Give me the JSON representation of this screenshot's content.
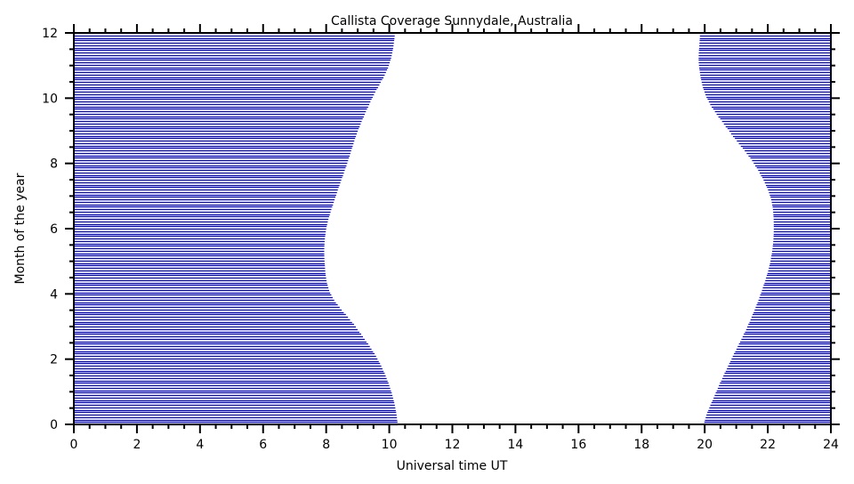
{
  "chart_data": {
    "type": "area",
    "title": "Callista Coverage Sunnydale, Australia",
    "xlabel": "Universal time UT",
    "ylabel": "Month of the year",
    "xlim": [
      0,
      24
    ],
    "ylim": [
      0,
      12
    ],
    "xticks": [
      "0",
      "2",
      "4",
      "6",
      "8",
      "10",
      "12",
      "14",
      "16",
      "18",
      "20",
      "22",
      "24"
    ],
    "yticks": [
      "0",
      "2",
      "4",
      "6",
      "8",
      "10",
      "12"
    ],
    "grid": false,
    "fill_color": "#0000ff",
    "fill_style": "horizontal hatch lines",
    "months": [
      0,
      1,
      2,
      3,
      4,
      5,
      6,
      7,
      8,
      9,
      10,
      11,
      12
    ],
    "series": [
      {
        "region": "covered from 0 UT to boundary",
        "x": [
          10.27,
          10.07,
          9.64,
          8.94,
          8.15,
          7.95,
          8.0,
          8.3,
          8.66,
          9.0,
          9.45,
          9.98,
          10.18
        ]
      },
      {
        "region": "covered from boundary to 24 UT",
        "x": [
          19.97,
          20.36,
          20.84,
          21.35,
          21.77,
          22.08,
          22.19,
          22.08,
          21.57,
          20.78,
          20.08,
          19.82,
          19.85
        ]
      }
    ]
  }
}
